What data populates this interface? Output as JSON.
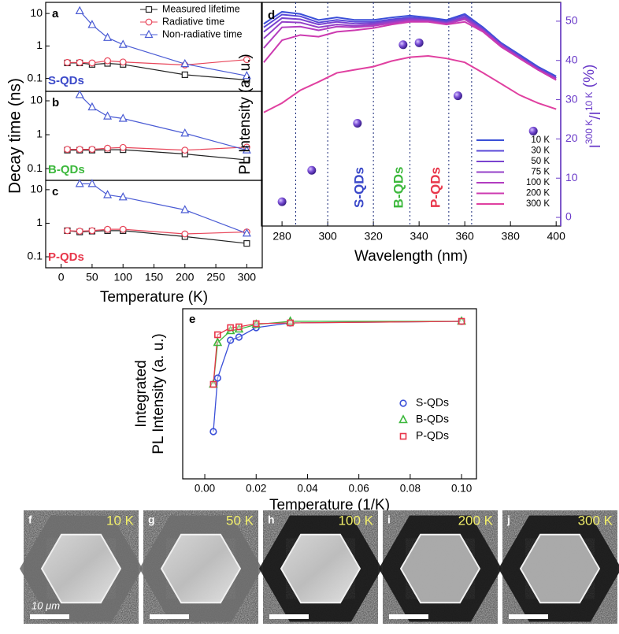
{
  "chart_data": [
    {
      "type": "line",
      "panel": "a",
      "label": "S-QDs",
      "label_color": "#3b49c9",
      "log_y": true,
      "x": [
        10,
        30,
        50,
        75,
        100,
        200,
        300
      ],
      "xlim": [
        -25,
        325
      ],
      "ylim": [
        0.04,
        22
      ],
      "yticks": [
        0.1,
        1,
        10
      ],
      "legend": "upper right",
      "series": [
        {
          "name": "Measured lifetime",
          "color": "#222222",
          "marker": "square",
          "values": [
            0.3,
            0.3,
            0.27,
            0.29,
            0.27,
            0.13,
            0.09
          ]
        },
        {
          "name": "Radiative time",
          "color": "#e8465a",
          "marker": "circle",
          "values": [
            0.31,
            0.31,
            0.3,
            0.35,
            0.32,
            0.26,
            0.38
          ]
        },
        {
          "name": "Non-radiative time",
          "color": "#4a5bd4",
          "marker": "triangle",
          "values": [
            null,
            12,
            4.5,
            1.8,
            1.1,
            0.28,
            0.12
          ]
        }
      ]
    },
    {
      "type": "line",
      "panel": "b",
      "label": "B-QDs",
      "label_color": "#3cb83c",
      "log_y": true,
      "ylabel": "Decay time (ns)",
      "x": [
        10,
        30,
        50,
        75,
        100,
        200,
        300
      ],
      "xlim": [
        -25,
        325
      ],
      "ylim": [
        0.045,
        19
      ],
      "yticks": [
        0.1,
        1,
        10
      ],
      "series": [
        {
          "color": "#222222",
          "marker": "square",
          "values": [
            0.35,
            0.35,
            0.35,
            0.36,
            0.36,
            0.27,
            0.18
          ]
        },
        {
          "color": "#e8465a",
          "marker": "circle",
          "values": [
            0.37,
            0.37,
            0.37,
            0.4,
            0.42,
            0.35,
            0.43
          ]
        },
        {
          "color": "#4a5bd4",
          "marker": "triangle",
          "values": [
            null,
            15,
            6.5,
            3.5,
            3,
            1.1,
            0.35
          ]
        }
      ]
    },
    {
      "type": "line",
      "panel": "c",
      "label": "P-QDs",
      "label_color": "#e8364a",
      "log_y": true,
      "xlabel": "Temperature (K)",
      "x": [
        10,
        30,
        50,
        75,
        100,
        200,
        300
      ],
      "xlim": [
        -25,
        325
      ],
      "ylim": [
        0.047,
        19
      ],
      "yticks": [
        0.1,
        1,
        10
      ],
      "xticks": [
        0,
        50,
        100,
        150,
        200,
        250,
        300
      ],
      "series": [
        {
          "color": "#222222",
          "marker": "square",
          "values": [
            0.6,
            0.55,
            0.58,
            0.6,
            0.6,
            0.4,
            0.25
          ]
        },
        {
          "color": "#e8465a",
          "marker": "circle",
          "values": [
            0.6,
            0.58,
            0.6,
            0.66,
            0.66,
            0.48,
            0.55
          ]
        },
        {
          "color": "#4a5bd4",
          "marker": "triangle",
          "values": [
            null,
            15,
            15,
            7,
            6,
            2.5,
            0.5
          ]
        }
      ]
    },
    {
      "type": "spectra",
      "panel": "d",
      "log_y": true,
      "xlabel": "Wavelength (nm)",
      "ylabel": "PL Intensity (a. u.)",
      "y2label": [
        "I",
        "300 K",
        "/I",
        "10 K",
        " (%)"
      ],
      "y2_color": "#6a3bc9",
      "x": [
        272,
        280,
        288,
        296,
        304,
        312,
        320,
        328,
        336,
        344,
        352,
        360,
        368,
        376,
        384,
        392,
        400
      ],
      "xlim": [
        271,
        402
      ],
      "xticks": [
        280,
        300,
        320,
        340,
        360,
        380,
        400
      ],
      "ylim": [
        0.02,
        1.2
      ],
      "y2lim": [
        -2.2,
        54.8
      ],
      "y2ticks": [
        0,
        10,
        20,
        30,
        40,
        50
      ],
      "vlines": [
        286,
        300,
        320,
        336,
        353,
        363
      ],
      "annotations": [
        "S-QDs",
        "B-QDs",
        "P-QDs"
      ],
      "annotation_colors": [
        "#3b49c9",
        "#3cb83c",
        "#e8364a"
      ],
      "legend": "lower right",
      "series": [
        {
          "name": "10 K",
          "color": "#3a4fd8",
          "values": [
            0.81,
            1.01,
            0.97,
            0.87,
            0.91,
            0.87,
            0.87,
            0.91,
            0.94,
            0.91,
            0.87,
            0.97,
            0.76,
            0.57,
            0.46,
            0.37,
            0.31
          ]
        },
        {
          "name": "30 K",
          "color": "#5a48d8",
          "values": [
            0.76,
            0.96,
            0.93,
            0.83,
            0.87,
            0.84,
            0.84,
            0.88,
            0.91,
            0.89,
            0.85,
            0.95,
            0.74,
            0.56,
            0.45,
            0.36,
            0.3
          ]
        },
        {
          "name": "50 K",
          "color": "#7a44d0",
          "values": [
            0.7,
            0.9,
            0.88,
            0.8,
            0.84,
            0.81,
            0.82,
            0.86,
            0.89,
            0.87,
            0.83,
            0.92,
            0.73,
            0.55,
            0.44,
            0.36,
            0.3
          ]
        },
        {
          "name": "75 K",
          "color": "#9440c8",
          "values": [
            0.62,
            0.84,
            0.83,
            0.76,
            0.8,
            0.78,
            0.8,
            0.84,
            0.87,
            0.86,
            0.82,
            0.9,
            0.72,
            0.55,
            0.44,
            0.35,
            0.3
          ]
        },
        {
          "name": "100 K",
          "color": "#b23cc0",
          "values": [
            0.52,
            0.76,
            0.77,
            0.72,
            0.77,
            0.76,
            0.78,
            0.82,
            0.86,
            0.85,
            0.81,
            0.88,
            0.71,
            0.54,
            0.43,
            0.35,
            0.29
          ]
        },
        {
          "name": "200 K",
          "color": "#cc3ab0",
          "values": [
            0.4,
            0.6,
            0.66,
            0.64,
            0.7,
            0.72,
            0.75,
            0.8,
            0.84,
            0.84,
            0.8,
            0.84,
            0.7,
            0.53,
            0.43,
            0.35,
            0.29
          ]
        },
        {
          "name": "300 K",
          "color": "#e040a0",
          "values": [
            0.16,
            0.19,
            0.24,
            0.28,
            0.33,
            0.35,
            0.37,
            0.41,
            0.44,
            0.45,
            0.43,
            0.4,
            0.33,
            0.27,
            0.22,
            0.19,
            0.17
          ]
        }
      ],
      "scatter": {
        "type": "scatter",
        "axis": "y2",
        "color": "#7b4fd6",
        "x": [
          280,
          293,
          313,
          333,
          340,
          357,
          390
        ],
        "values": [
          4,
          12,
          24,
          44,
          44.5,
          31,
          22
        ]
      }
    },
    {
      "type": "scatter",
      "panel": "e",
      "xlabel": "Temperature (1/K)",
      "ylabel": [
        "Integrated",
        "PL Intensity (a. u.)"
      ],
      "x": [
        0.00333,
        0.005,
        0.01,
        0.0133,
        0.02,
        0.0333,
        0.1
      ],
      "xlim": [
        -0.0086,
        0.1058
      ],
      "ylim": [
        0,
        1.08
      ],
      "xticks": [
        {
          "value": 0,
          "label": "0.00"
        },
        0.02,
        0.04,
        0.06,
        0.08,
        {
          "value": 0.1,
          "label": "0.10"
        }
      ],
      "legend": "center right",
      "series": [
        {
          "name": "S-QDs",
          "color": "#3a4fd8",
          "marker": "circle",
          "values": [
            0.3,
            0.64,
            0.88,
            0.9,
            0.96,
            0.99,
            1.0
          ]
        },
        {
          "name": "B-QDs",
          "color": "#3cb83c",
          "marker": "triangle",
          "values": [
            0.6,
            0.865,
            0.94,
            0.95,
            0.98,
            1.0,
            1.0
          ]
        },
        {
          "name": "P-QDs",
          "color": "#e8364a",
          "marker": "square",
          "values": [
            0.6,
            0.915,
            0.96,
            0.965,
            0.985,
            0.99,
            1.0
          ]
        }
      ]
    }
  ],
  "images": [
    {
      "panel": "f",
      "temperature": "10 K"
    },
    {
      "panel": "g",
      "temperature": "50 K"
    },
    {
      "panel": "h",
      "temperature": "100 K"
    },
    {
      "panel": "i",
      "temperature": "200 K"
    },
    {
      "panel": "j",
      "temperature": "300 K"
    }
  ],
  "scale_bar": "10 μm"
}
